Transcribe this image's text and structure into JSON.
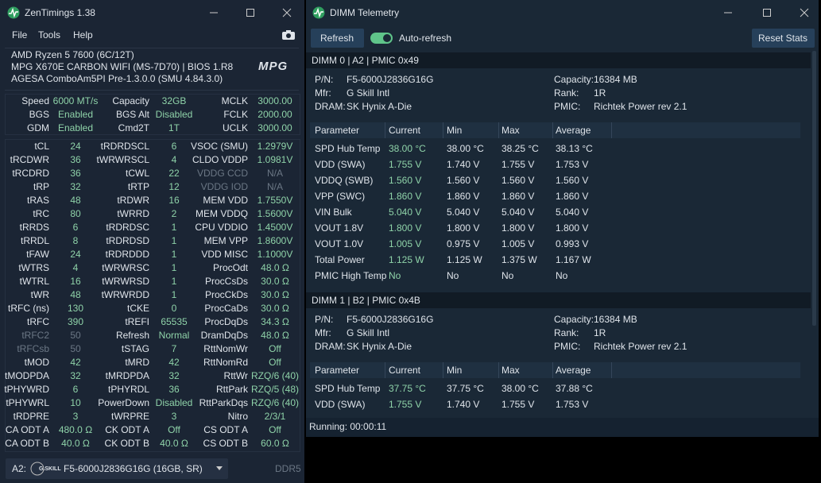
{
  "zentimings": {
    "title": "ZenTimings 1.38",
    "menu": [
      "File",
      "Tools",
      "Help"
    ],
    "system": [
      "AMD Ryzen 5 7600 (6C/12T)",
      "MPG X670E CARBON WIFI (MS-7D70) | BIOS 1.R8",
      "AGESA ComboAm5PI Pre-1.3.0.0 (SMU 4.84.3.0)"
    ],
    "logo": "MPG",
    "summary": [
      [
        [
          "Speed",
          "6000 MT/s"
        ],
        [
          "Capacity",
          "32GB"
        ],
        [
          "MCLK",
          "3000.00"
        ]
      ],
      [
        [
          "BGS",
          "Enabled"
        ],
        [
          "BGS Alt",
          "Disabled"
        ],
        [
          "FCLK",
          "2000.00"
        ]
      ],
      [
        [
          "GDM",
          "Enabled"
        ],
        [
          "Cmd2T",
          "1T"
        ],
        [
          "UCLK",
          "3000.00"
        ]
      ]
    ],
    "timings": [
      [
        [
          "tCL",
          "24"
        ],
        [
          "tRDRDSCL",
          "6"
        ],
        [
          "VSOC (SMU)",
          "1.2979V"
        ]
      ],
      [
        [
          "tRCDWR",
          "36"
        ],
        [
          "tWRWRSCL",
          "4"
        ],
        [
          "CLDO VDDP",
          "1.0981V"
        ]
      ],
      [
        [
          "tRCDRD",
          "36"
        ],
        [
          "tCWL",
          "22"
        ],
        {
          "label": "VDDG CCD",
          "value": "N/A",
          "dim": true
        }
      ],
      [
        [
          "tRP",
          "32"
        ],
        [
          "tRTP",
          "12"
        ],
        {
          "label": "VDDG IOD",
          "value": "N/A",
          "dim": true
        }
      ],
      [
        [
          "tRAS",
          "48"
        ],
        [
          "tRDWR",
          "16"
        ],
        [
          "MEM VDD",
          "1.7550V"
        ]
      ],
      [
        [
          "tRC",
          "80"
        ],
        [
          "tWRRD",
          "2"
        ],
        [
          "MEM VDDQ",
          "1.5600V"
        ]
      ],
      [
        [
          "tRRDS",
          "6"
        ],
        [
          "tRDRDSC",
          "1"
        ],
        [
          "CPU VDDIO",
          "1.4500V"
        ]
      ],
      [
        [
          "tRRDL",
          "8"
        ],
        [
          "tRDRDSD",
          "1"
        ],
        [
          "MEM VPP",
          "1.8600V"
        ]
      ],
      [
        [
          "tFAW",
          "24"
        ],
        [
          "tRDRDDD",
          "1"
        ],
        [
          "VDD MISC",
          "1.1000V"
        ]
      ],
      [
        [
          "tWTRS",
          "4"
        ],
        [
          "tWRWRSC",
          "1"
        ],
        [
          "ProcOdt",
          "48.0 Ω"
        ]
      ],
      [
        [
          "tWTRL",
          "16"
        ],
        [
          "tWRWRSD",
          "1"
        ],
        [
          "ProcCsDs",
          "30.0 Ω"
        ]
      ],
      [
        [
          "tWR",
          "48"
        ],
        [
          "tWRWRDD",
          "1"
        ],
        [
          "ProcCkDs",
          "30.0 Ω"
        ]
      ],
      [
        [
          "tRFC (ns)",
          "130"
        ],
        [
          "tCKE",
          "0"
        ],
        [
          "ProcCaDs",
          "30.0 Ω"
        ]
      ],
      [
        [
          "tRFC",
          "390"
        ],
        [
          "tREFI",
          "65535"
        ],
        [
          "ProcDqDs",
          "34.3 Ω"
        ]
      ],
      [
        {
          "label": "tRFC2",
          "value": "50",
          "dim": true
        },
        [
          "Refresh",
          "Normal"
        ],
        [
          "DramDqDs",
          "48.0 Ω"
        ]
      ],
      [
        {
          "label": "tRFCsb",
          "value": "50",
          "dim": true
        },
        [
          "tSTAG",
          "7"
        ],
        [
          "RttNomWr",
          "Off"
        ]
      ],
      [
        [
          "tMOD",
          "42"
        ],
        [
          "tMRD",
          "42"
        ],
        [
          "RttNomRd",
          "Off"
        ]
      ],
      [
        [
          "tMODPDA",
          "32"
        ],
        [
          "tMRDPDA",
          "32"
        ],
        [
          "RttWr",
          "RZQ/6 (40)"
        ]
      ],
      [
        [
          "tPHYWRD",
          "6"
        ],
        [
          "tPHYRDL",
          "36"
        ],
        [
          "RttPark",
          "RZQ/5 (48)"
        ]
      ],
      [
        [
          "tPHYWRL",
          "10"
        ],
        [
          "PowerDown",
          "Disabled"
        ],
        [
          "RttParkDqs",
          "RZQ/6 (40)"
        ]
      ],
      [
        [
          "tRDPRE",
          "3"
        ],
        [
          "tWRPRE",
          "3"
        ],
        [
          "Nitro",
          "2/3/1"
        ]
      ],
      [
        [
          "CA ODT A",
          "480.0 Ω"
        ],
        [
          "CK ODT A",
          "Off"
        ],
        [
          "CS ODT A",
          "Off"
        ]
      ],
      [
        [
          "CA ODT B",
          "40.0 Ω"
        ],
        [
          "CK ODT B",
          "40.0 Ω"
        ],
        [
          "CS ODT B",
          "60.0 Ω"
        ]
      ]
    ],
    "footer": {
      "slot": "A2:",
      "brand": "G.SKILL",
      "module": "F5-6000J2836G16G (16GB, SR)",
      "type": "DDR5"
    }
  },
  "telemetry": {
    "title": "DIMM Telemetry",
    "refresh": "Refresh",
    "auto_refresh": "Auto-refresh",
    "reset": "Reset Stats",
    "columns": [
      "Parameter",
      "Current",
      "Min",
      "Max",
      "Average"
    ],
    "dimms": [
      {
        "header": "DIMM 0 | A2 | PMIC 0x49",
        "info": [
          [
            "P/N:",
            "F5-6000J2836G16G"
          ],
          [
            "Mfr:",
            "G Skill Intl"
          ],
          [
            "DRAM:",
            "SK Hynix A-Die"
          ]
        ],
        "info_right": [
          [
            "Capacity:",
            "16384 MB"
          ],
          [
            "Rank:",
            "1R"
          ],
          [
            "PMIC:",
            "Richtek Power rev 2.1"
          ]
        ],
        "rows": [
          [
            "SPD Hub Temp",
            "38.00 °C",
            "38.00 °C",
            "38.25 °C",
            "38.13 °C"
          ],
          [
            "VDD (SWA)",
            "1.755 V",
            "1.740 V",
            "1.755 V",
            "1.753 V"
          ],
          [
            "VDDQ (SWB)",
            "1.560 V",
            "1.560 V",
            "1.560 V",
            "1.560 V"
          ],
          [
            "VPP (SWC)",
            "1.860 V",
            "1.860 V",
            "1.860 V",
            "1.860 V"
          ],
          [
            "VIN Bulk",
            "5.040 V",
            "5.040 V",
            "5.040 V",
            "5.040 V"
          ],
          [
            "VOUT 1.8V",
            "1.800 V",
            "1.800 V",
            "1.800 V",
            "1.800 V"
          ],
          [
            "VOUT 1.0V",
            "1.005 V",
            "0.975 V",
            "1.005 V",
            "0.993 V"
          ],
          [
            "Total Power",
            "1.125 W",
            "1.125 W",
            "1.375 W",
            "1.167 W"
          ],
          [
            "PMIC High Temp",
            "No",
            "No",
            "No",
            "No"
          ]
        ]
      },
      {
        "header": "DIMM 1 | B2 | PMIC 0x4B",
        "info": [
          [
            "P/N:",
            "F5-6000J2836G16G"
          ],
          [
            "Mfr:",
            "G Skill Intl"
          ],
          [
            "DRAM:",
            "SK Hynix A-Die"
          ]
        ],
        "info_right": [
          [
            "Capacity:",
            "16384 MB"
          ],
          [
            "Rank:",
            "1R"
          ],
          [
            "PMIC:",
            "Richtek Power rev 2.1"
          ]
        ],
        "rows": [
          [
            "SPD Hub Temp",
            "37.75 °C",
            "37.75 °C",
            "38.00 °C",
            "37.88 °C"
          ],
          [
            "VDD (SWA)",
            "1.755 V",
            "1.740 V",
            "1.755 V",
            "1.753 V"
          ]
        ]
      }
    ],
    "status": "Running: 00:00:11"
  }
}
